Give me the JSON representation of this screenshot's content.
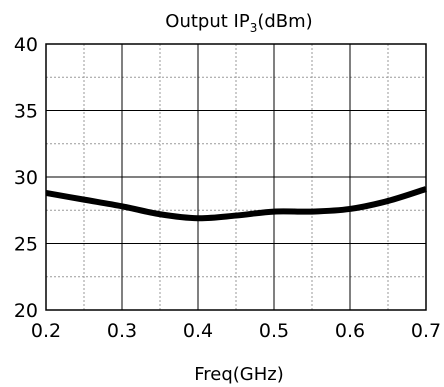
{
  "chart_data": {
    "type": "line",
    "title": {
      "main": "Output IP",
      "subscript": "3",
      "suffix": "(dBm)"
    },
    "xlabel": "Freq(GHz)",
    "ylabel": "",
    "xlim": [
      0.2,
      0.7
    ],
    "ylim": [
      20,
      40
    ],
    "x_major_ticks": [
      0.2,
      0.3,
      0.4,
      0.5,
      0.6,
      0.7
    ],
    "x_tick_labels": [
      "0.2",
      "0.3",
      "0.4",
      "0.5",
      "0.6",
      "0.7"
    ],
    "x_minor_ticks": [
      0.25,
      0.35,
      0.45,
      0.55,
      0.65
    ],
    "y_major_ticks": [
      20,
      25,
      30,
      35,
      40
    ],
    "y_tick_labels": [
      "20",
      "25",
      "30",
      "35",
      "40"
    ],
    "y_minor_ticks": [
      22.5,
      27.5,
      32.5,
      37.5
    ],
    "grid": true,
    "legend": "none",
    "series": [
      {
        "color": "#000000",
        "x": [
          0.2,
          0.25,
          0.3,
          0.35,
          0.4,
          0.45,
          0.5,
          0.55,
          0.6,
          0.65,
          0.7
        ],
        "y": [
          28.8,
          28.3,
          27.8,
          27.2,
          26.9,
          27.1,
          27.4,
          27.4,
          27.6,
          28.2,
          29.1
        ]
      }
    ]
  }
}
